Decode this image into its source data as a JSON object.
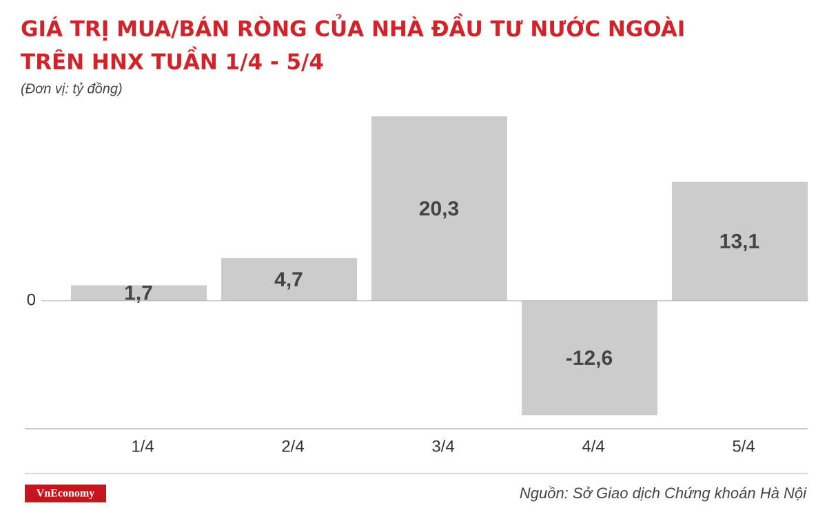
{
  "chart_data": {
    "type": "bar",
    "title": [
      "GIÁ TRỊ MUA/BÁN RÒNG CỦA NHÀ ĐẦU TƯ NƯỚC NGOÀI",
      "TRÊN HNX TUẦN 1/4 - 5/4"
    ],
    "subtitle": "(Đơn vị: tỷ đồng)",
    "categories": [
      "1/4",
      "2/4",
      "3/4",
      "4/4",
      "5/4"
    ],
    "values": [
      1.7,
      4.7,
      20.3,
      -12.6,
      13.1
    ],
    "value_labels": [
      "1,7",
      "4,7",
      "20,3",
      "-12,6",
      "13,1"
    ],
    "color": "#cccccc",
    "ylim": [
      -14.1,
      20.3
    ],
    "yticks": [
      0
    ],
    "logo": "VnEconomy",
    "source": "Nguồn: Sở Giao dịch Chứng khoán Hà Nội"
  }
}
